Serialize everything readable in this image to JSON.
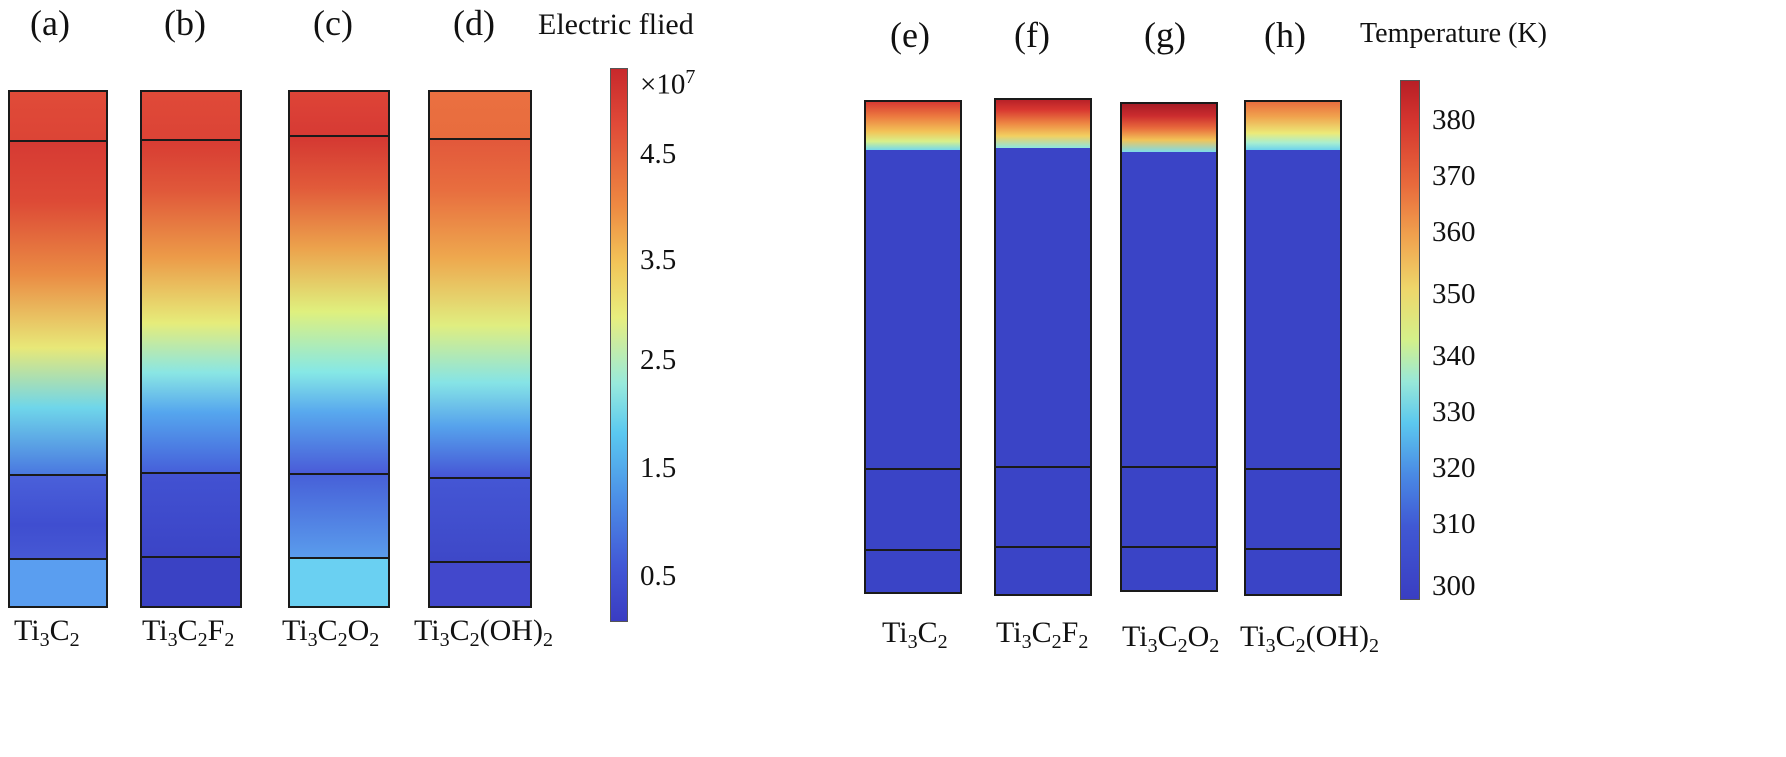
{
  "left_figure": {
    "colorbar_title": "Electric flied",
    "multiplier_prefix": "×10",
    "multiplier_exp": "7",
    "ticks": [
      "4.5",
      "3.5",
      "2.5",
      "1.5",
      "0.5"
    ],
    "panels": [
      {
        "label": "(a)",
        "mat_parts": [
          [
            "Ti",
            ""
          ],
          [
            "3",
            "sub"
          ],
          [
            "C",
            ""
          ],
          [
            "2",
            "sub"
          ]
        ]
      },
      {
        "label": "(b)",
        "mat_parts": [
          [
            "Ti",
            ""
          ],
          [
            "3",
            "sub"
          ],
          [
            "C",
            ""
          ],
          [
            "2",
            "sub"
          ],
          [
            "F",
            ""
          ],
          [
            "2",
            "sub"
          ]
        ]
      },
      {
        "label": "(c)",
        "mat_parts": [
          [
            "Ti",
            ""
          ],
          [
            "3",
            "sub"
          ],
          [
            "C",
            ""
          ],
          [
            "2",
            "sub"
          ],
          [
            "O",
            ""
          ],
          [
            "2",
            "sub"
          ]
        ]
      },
      {
        "label": "(d)",
        "mat_parts": [
          [
            "Ti",
            ""
          ],
          [
            "3",
            "sub"
          ],
          [
            "C",
            ""
          ],
          [
            "2",
            "sub"
          ],
          [
            "(OH)",
            ""
          ],
          [
            "2",
            "sub"
          ]
        ]
      }
    ]
  },
  "right_figure": {
    "colorbar_title": "Temperature (K)",
    "ticks": [
      "380",
      "370",
      "360",
      "350",
      "340",
      "330",
      "320",
      "310",
      "300"
    ],
    "panels": [
      {
        "label": "(e)",
        "mat_parts": [
          [
            "Ti",
            ""
          ],
          [
            "3",
            "sub"
          ],
          [
            "C",
            ""
          ],
          [
            "2",
            "sub"
          ]
        ]
      },
      {
        "label": "(f)",
        "mat_parts": [
          [
            "Ti",
            ""
          ],
          [
            "3",
            "sub"
          ],
          [
            "C",
            ""
          ],
          [
            "2",
            "sub"
          ],
          [
            "F",
            ""
          ],
          [
            "2",
            "sub"
          ]
        ]
      },
      {
        "label": "(g)",
        "mat_parts": [
          [
            "Ti",
            ""
          ],
          [
            "3",
            "sub"
          ],
          [
            "C",
            ""
          ],
          [
            "2",
            "sub"
          ],
          [
            "O",
            ""
          ],
          [
            "2",
            "sub"
          ]
        ]
      },
      {
        "label": "(h)",
        "mat_parts": [
          [
            "Ti",
            ""
          ],
          [
            "3",
            "sub"
          ],
          [
            "C",
            ""
          ],
          [
            "2",
            "sub"
          ],
          [
            "(OH)",
            ""
          ],
          [
            "2",
            "sub"
          ]
        ]
      }
    ]
  },
  "colors": {
    "jet": [
      "#3a3fc4",
      "#4a6ee0",
      "#5ac8f0",
      "#d7f08a",
      "#f0d060",
      "#f08a40",
      "#e05040",
      "#c8302e"
    ],
    "cold": "#3a44c6",
    "outline": "#1a1a1a"
  }
}
